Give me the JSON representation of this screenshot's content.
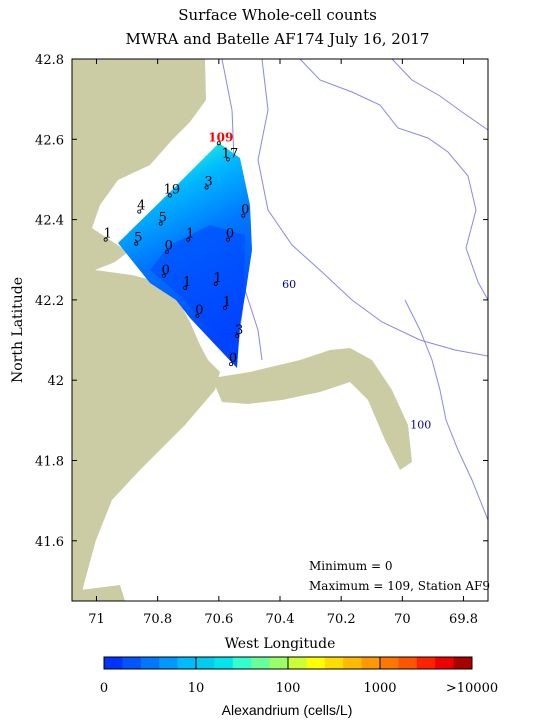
{
  "title": {
    "line1": "Surface Whole-cell counts",
    "line2": "MWRA and Batelle AF174 July 16, 2017"
  },
  "axes": {
    "xlabel": "West Longitude",
    "ylabel": "North Latitude",
    "x_ticks": [
      "71",
      "70.8",
      "70.6",
      "70.4",
      "70.2",
      "70",
      "69.8"
    ],
    "y_ticks": [
      "42.8",
      "42.6",
      "42.4",
      "42.2",
      "42",
      "41.8",
      "41.6"
    ],
    "x_range": [
      71.08,
      69.72
    ],
    "y_range": [
      41.45,
      42.8
    ]
  },
  "contours": [
    {
      "label": "60",
      "lon": 70.37,
      "lat": 42.24
    },
    {
      "label": "100",
      "lon": 69.94,
      "lat": 41.89
    }
  ],
  "stations": [
    {
      "value": "109",
      "lon": 70.6,
      "lat": 42.59,
      "max": true
    },
    {
      "value": "17",
      "lon": 70.57,
      "lat": 42.55
    },
    {
      "value": "3",
      "lon": 70.64,
      "lat": 42.48
    },
    {
      "value": "19",
      "lon": 70.76,
      "lat": 42.46
    },
    {
      "value": "4",
      "lon": 70.86,
      "lat": 42.42
    },
    {
      "value": "0",
      "lon": 70.52,
      "lat": 42.41
    },
    {
      "value": "5",
      "lon": 70.79,
      "lat": 42.39
    },
    {
      "value": "1",
      "lon": 70.97,
      "lat": 42.35
    },
    {
      "value": "5",
      "lon": 70.87,
      "lat": 42.34
    },
    {
      "value": "1",
      "lon": 70.7,
      "lat": 42.35
    },
    {
      "value": "0",
      "lon": 70.57,
      "lat": 42.35
    },
    {
      "value": "0",
      "lon": 70.77,
      "lat": 42.32
    },
    {
      "value": "0",
      "lon": 70.78,
      "lat": 42.26
    },
    {
      "value": "1",
      "lon": 70.71,
      "lat": 42.23
    },
    {
      "value": "1",
      "lon": 70.61,
      "lat": 42.24
    },
    {
      "value": "1",
      "lon": 70.58,
      "lat": 42.18
    },
    {
      "value": "0",
      "lon": 70.67,
      "lat": 42.16
    },
    {
      "value": "3",
      "lon": 70.54,
      "lat": 42.11
    },
    {
      "value": "0",
      "lon": 70.56,
      "lat": 42.04
    }
  ],
  "stats": {
    "minimum": "Minimum = 0",
    "maximum": "Maximum = 109, Station AF9"
  },
  "colorbar": {
    "label": "Alexandrium (cells/L)",
    "tick_labels": [
      "0",
      "10",
      "100",
      "1000",
      ">10000"
    ],
    "colors": [
      "#0033ff",
      "#0055ff",
      "#0077ff",
      "#0099ff",
      "#00bbff",
      "#00ccee",
      "#00e5ee",
      "#33ffcc",
      "#66ff99",
      "#99ff66",
      "#ccff33",
      "#ffff00",
      "#ffdd00",
      "#ffbb00",
      "#ff9900",
      "#ff7700",
      "#ff5500",
      "#ff2200",
      "#ee0000",
      "#aa0000"
    ]
  },
  "colors": {
    "land": "#cccca4",
    "contour_line": "#8888ee",
    "contour_text": "#000099",
    "max_label": "#ff0000"
  }
}
